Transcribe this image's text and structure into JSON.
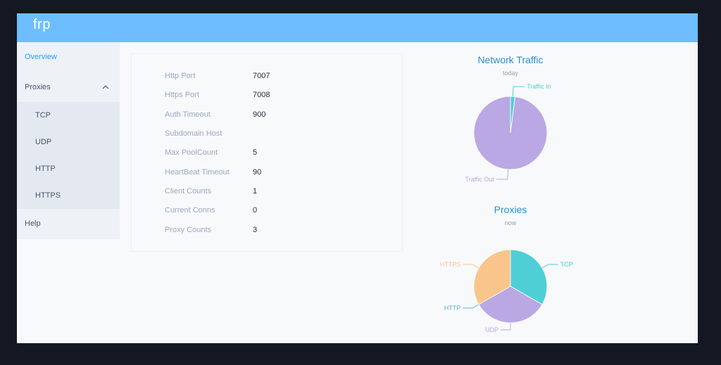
{
  "app": {
    "brand": "frp"
  },
  "sidebar": {
    "items": [
      {
        "label": "Overview",
        "active": true
      },
      {
        "label": "Proxies",
        "expanded": true,
        "children": [
          {
            "label": "TCP"
          },
          {
            "label": "UDP"
          },
          {
            "label": "HTTP"
          },
          {
            "label": "HTTPS"
          }
        ]
      },
      {
        "label": "Help"
      }
    ]
  },
  "server_info": [
    {
      "label": "Http Port",
      "value": "7007"
    },
    {
      "label": "Https Port",
      "value": "7008"
    },
    {
      "label": "Auth Timeout",
      "value": "900"
    },
    {
      "label": "Subdomain Host",
      "value": ""
    },
    {
      "label": "Max PoolCount",
      "value": "5"
    },
    {
      "label": "HeartBeat Timeout",
      "value": "90"
    },
    {
      "label": "Client Counts",
      "value": "1"
    },
    {
      "label": "Current Conns",
      "value": "0"
    },
    {
      "label": "Proxy Counts",
      "value": "3"
    }
  ],
  "chart_data": [
    {
      "type": "pie",
      "title": "Network Traffic",
      "subtitle": "today",
      "slices": [
        {
          "name": "Traffic In",
          "value": 2,
          "color": "#4ecfd6"
        },
        {
          "name": "Traffic Out",
          "value": 98,
          "color": "#b9a8e3"
        }
      ]
    },
    {
      "type": "pie",
      "title": "Proxies",
      "subtitle": "now",
      "slices": [
        {
          "name": "TCP",
          "value": 1,
          "color": "#4ecfd6"
        },
        {
          "name": "UDP",
          "value": 1,
          "color": "#b9a8e3"
        },
        {
          "name": "HTTP",
          "value": 0,
          "color": "#5aaedc"
        },
        {
          "name": "HTTPS",
          "value": 1,
          "color": "#f9c58a"
        }
      ]
    }
  ]
}
